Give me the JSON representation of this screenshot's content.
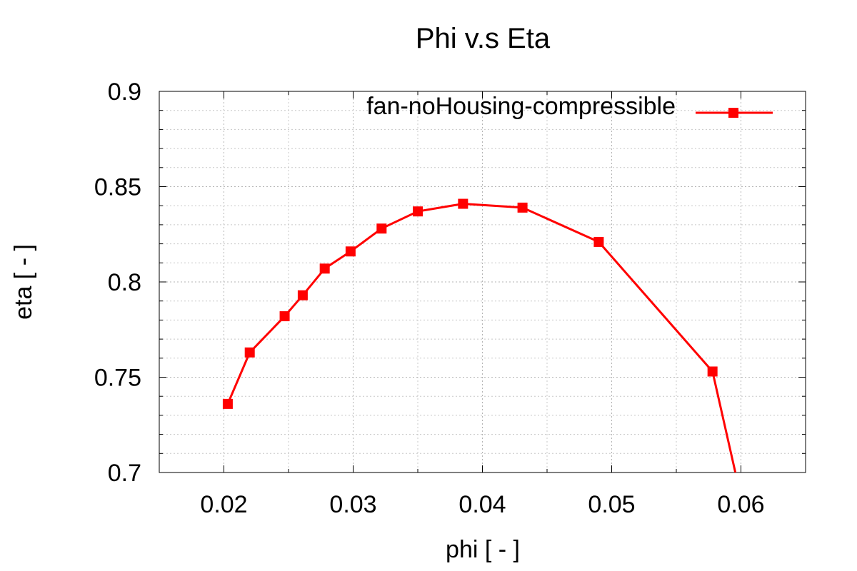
{
  "chart_data": {
    "type": "line",
    "title": "Phi v.s Eta",
    "xlabel": "phi [ - ]",
    "ylabel": "eta [ - ]",
    "xlim": [
      0.015,
      0.065
    ],
    "ylim": [
      0.7,
      0.9
    ],
    "x_ticks": [
      0.02,
      0.03,
      0.04,
      0.05,
      0.06
    ],
    "x_tick_labels": [
      "0.02",
      "0.03",
      "0.04",
      "0.05",
      "0.06"
    ],
    "x_minor_step": 0.005,
    "y_ticks": [
      0.7,
      0.75,
      0.8,
      0.85,
      0.9
    ],
    "y_tick_labels": [
      "0.7",
      "0.75",
      "0.8",
      "0.85",
      "0.9"
    ],
    "y_minor_step": 0.01,
    "grid": true,
    "legend_position": "top-right",
    "series": [
      {
        "name": "fan-noHousing-compressible",
        "color": "#ff0000",
        "marker": "square",
        "x": [
          0.0203,
          0.022,
          0.0247,
          0.0261,
          0.0278,
          0.0298,
          0.0322,
          0.035,
          0.0385,
          0.0431,
          0.049,
          0.0578,
          0.0596
        ],
        "y": [
          0.736,
          0.763,
          0.782,
          0.793,
          0.807,
          0.816,
          0.828,
          0.837,
          0.841,
          0.839,
          0.821,
          0.753,
          0.699
        ]
      }
    ]
  }
}
